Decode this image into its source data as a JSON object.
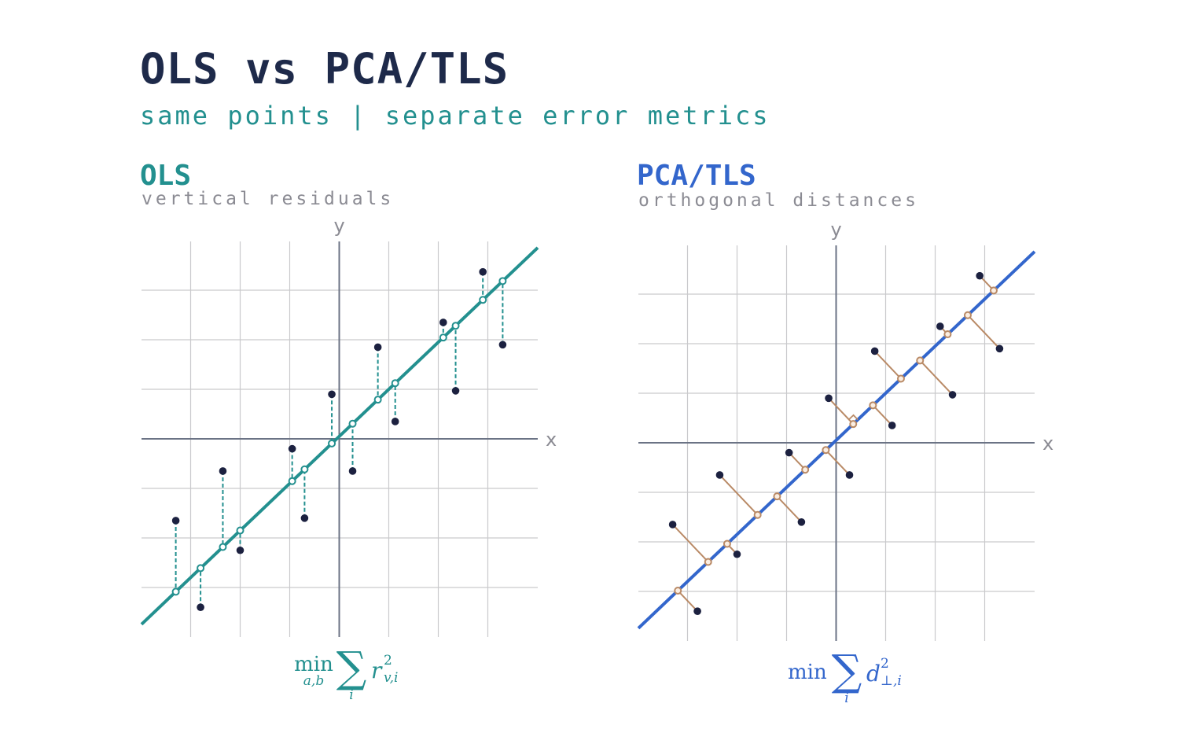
{
  "header": {
    "title": "OLS vs PCA/TLS",
    "subtitle": "same points | separate error metrics"
  },
  "colors": {
    "title": "#1e2a4a",
    "ols_accent": "#23908f",
    "pca_accent": "#3366cc",
    "residual_ortho": "#b98a66",
    "point": "#1c2140",
    "grid": "#c9c9cc",
    "axis": "#6b7385"
  },
  "points": [
    {
      "x": -3.3,
      "y": -1.65
    },
    {
      "x": -2.8,
      "y": -3.4
    },
    {
      "x": -2.35,
      "y": -0.65
    },
    {
      "x": -2.0,
      "y": -2.25
    },
    {
      "x": -0.95,
      "y": -0.2
    },
    {
      "x": -0.7,
      "y": -1.6
    },
    {
      "x": -0.15,
      "y": 0.9
    },
    {
      "x": 0.27,
      "y": -0.65
    },
    {
      "x": 0.78,
      "y": 1.85
    },
    {
      "x": 1.13,
      "y": 0.35
    },
    {
      "x": 2.1,
      "y": 2.35
    },
    {
      "x": 2.35,
      "y": 0.97
    },
    {
      "x": 2.9,
      "y": 3.37
    },
    {
      "x": 3.3,
      "y": 1.9
    }
  ],
  "panels": {
    "ols": {
      "title": "OLS",
      "subtitle": "vertical residuals",
      "x_axis_label": "x",
      "y_axis_label": "y",
      "fit_slope": 0.95,
      "fit_intercept": 0.05,
      "formula": {
        "op": "min",
        "op_sub": "a,b",
        "sum_sub": "i",
        "var": "r",
        "var_sup": "2",
        "var_sub": "v,i"
      }
    },
    "pca": {
      "title": "PCA/TLS",
      "subtitle": "orthogonal distances",
      "x_axis_label": "x",
      "y_axis_label": "y",
      "fit_slope": 0.95,
      "fit_intercept": 0.05,
      "formula": {
        "op": "min",
        "sum_sub": "i",
        "var": "d",
        "var_sup": "2",
        "var_sub": "⊥,i"
      }
    }
  }
}
